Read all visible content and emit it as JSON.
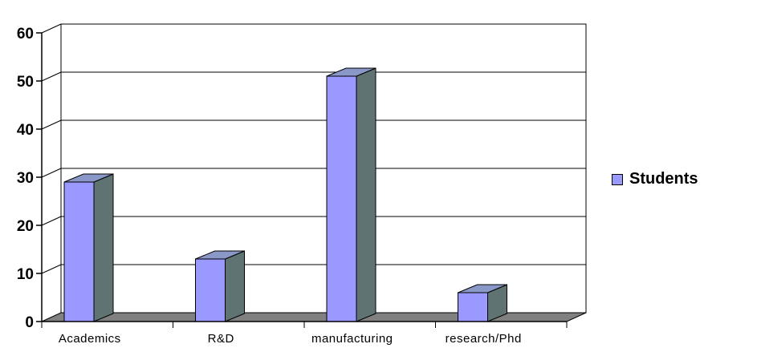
{
  "chart_data": {
    "type": "bar",
    "categories": [
      "Academics",
      "R&D",
      "manufacturing",
      "research/Phd"
    ],
    "series": [
      {
        "name": "Students",
        "values": [
          29,
          13,
          51,
          6
        ]
      }
    ],
    "ylim": [
      0,
      60
    ],
    "yticks": [
      0,
      10,
      20,
      30,
      40,
      50,
      60
    ],
    "grid": true,
    "legend_position": "right",
    "style": "3d-bar",
    "colors": {
      "bar_front": "#9999ff",
      "bar_side": "#5f7373",
      "bar_top": "#8a98c8",
      "floor": "#808080",
      "grid": "#000000"
    }
  },
  "legend": {
    "label": "Students",
    "color": "#9999ff"
  }
}
